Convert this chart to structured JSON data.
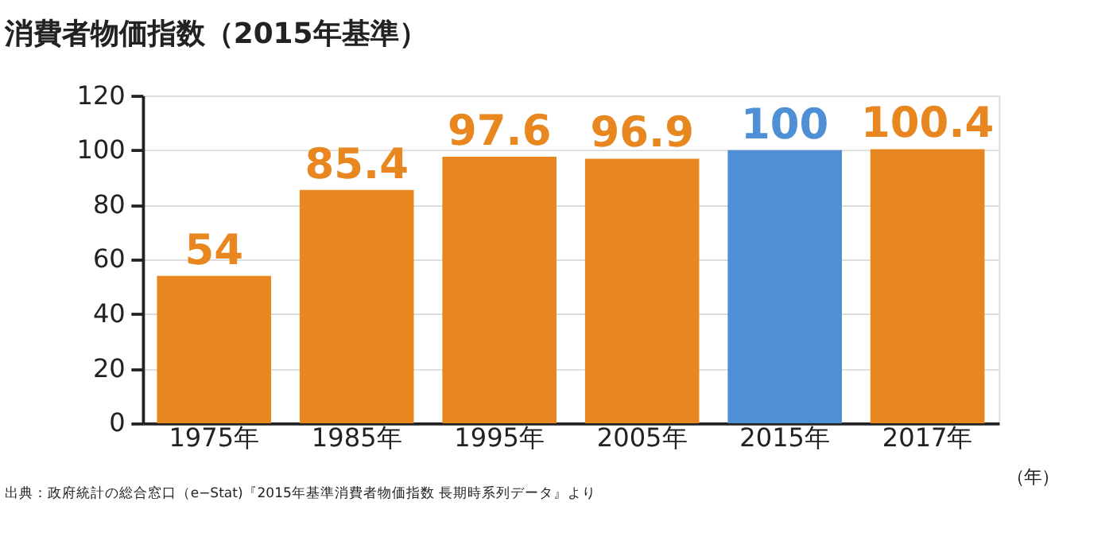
{
  "chart_data": {
    "type": "bar",
    "title": "消費者物価指数（2015年基準）",
    "categories": [
      "1975年",
      "1985年",
      "1995年",
      "2005年",
      "2015年",
      "2017年"
    ],
    "values": [
      54,
      85.4,
      97.6,
      96.9,
      100,
      100.4
    ],
    "colors": [
      "#e8861f",
      "#e8861f",
      "#e8861f",
      "#e8861f",
      "#4f8fd6",
      "#e8861f"
    ],
    "xlabel": "（年）",
    "ylim": [
      0,
      120
    ],
    "yticks": [
      0,
      20,
      40,
      60,
      80,
      100,
      120
    ],
    "grid": "y",
    "data_labels": true,
    "annotations": [
      "出典：政府統計の総合窓口（e−Stat)『2015年基準消費者物価指数 長期時系列データ』より"
    ]
  }
}
